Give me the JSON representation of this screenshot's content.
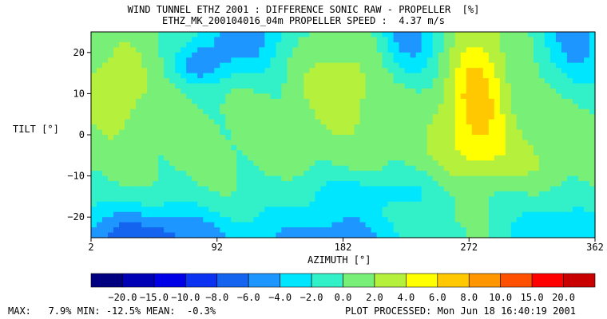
{
  "chart_data": {
    "type": "heatmap",
    "title": "WIND TUNNEL ETHZ 2001 : DIFFERENCE SONIC RAW - PROPELLER  [%]",
    "subtitle": "ETHZ_MK_200104016_04m PROPELLER SPEED :  4.37 m/s",
    "xlabel": "AZIMUTH [°]",
    "ylabel": "TILT [°]",
    "xlim": [
      2,
      362
    ],
    "ylim": [
      -25,
      25
    ],
    "x_ticks": [
      2,
      92,
      182,
      272,
      362
    ],
    "y_ticks": [
      20,
      10,
      0,
      -10,
      -20
    ],
    "x_tick_labels": [
      "2",
      "92",
      "182",
      "272",
      "362"
    ],
    "y_tick_labels": [
      "20",
      "10",
      "0",
      "−10",
      "−20"
    ],
    "colorbar": {
      "levels": [
        -20.0,
        -15.0,
        -10.0,
        -8.0,
        -6.0,
        -4.0,
        -2.0,
        0.0,
        2.0,
        4.0,
        6.0,
        8.0,
        10.0,
        15.0,
        20.0
      ],
      "labels": [
        "−20.0",
        "−15.0",
        "−10.0",
        "−8.0",
        "−6.0",
        "−4.0",
        "−2.0",
        "0.0",
        "2.0",
        "4.0",
        "6.0",
        "8.0",
        "10.0",
        "15.0",
        "20.0"
      ],
      "colors": [
        "#000080",
        "#0000b4",
        "#0000e6",
        "#0a32f0",
        "#1464f0",
        "#1e96ff",
        "#00e6ff",
        "#32f0c8",
        "#78f078",
        "#b4f03c",
        "#ffff00",
        "#ffc800",
        "#ff9600",
        "#ff5000",
        "#ff0000",
        "#c80000"
      ]
    },
    "grid": false,
    "legend": "bottom"
  },
  "footer": {
    "stats": "MAX:   7.9% MIN: -12.5% MEAN:  -0.3%",
    "processed": "PLOT PROCESSED: Mon Jun 18 16:40:19 2001"
  }
}
